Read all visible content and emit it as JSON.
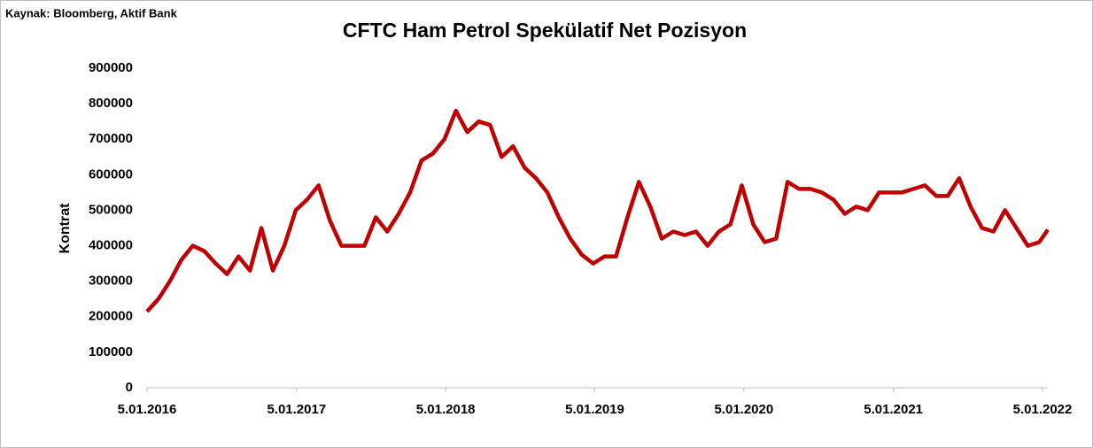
{
  "source": "Kaynak: Bloomberg, Aktif Bank",
  "chart_data": {
    "type": "line",
    "title": "CFTC Ham Petrol Spekülatif Net Pozisyon",
    "y_label": "Kontrat",
    "x": [
      "2016-01-05",
      "2016-02-02",
      "2016-03-01",
      "2016-03-29",
      "2016-04-26",
      "2016-05-24",
      "2016-06-21",
      "2016-07-19",
      "2016-08-16",
      "2016-09-13",
      "2016-10-11",
      "2016-11-08",
      "2016-12-06",
      "2017-01-03",
      "2017-01-31",
      "2017-02-28",
      "2017-03-28",
      "2017-04-25",
      "2017-05-23",
      "2017-06-20",
      "2017-07-18",
      "2017-08-15",
      "2017-09-12",
      "2017-10-10",
      "2017-11-07",
      "2017-12-05",
      "2018-01-02",
      "2018-01-30",
      "2018-02-27",
      "2018-03-27",
      "2018-04-24",
      "2018-05-22",
      "2018-06-19",
      "2018-07-17",
      "2018-08-14",
      "2018-09-11",
      "2018-10-09",
      "2018-11-06",
      "2018-12-04",
      "2019-01-01",
      "2019-01-29",
      "2019-02-26",
      "2019-03-26",
      "2019-04-23",
      "2019-05-21",
      "2019-06-18",
      "2019-07-16",
      "2019-08-13",
      "2019-09-10",
      "2019-10-08",
      "2019-11-05",
      "2019-12-03",
      "2019-12-31",
      "2020-01-28",
      "2020-02-25",
      "2020-03-24",
      "2020-04-21",
      "2020-05-19",
      "2020-06-16",
      "2020-07-14",
      "2020-08-11",
      "2020-09-08",
      "2020-10-06",
      "2020-11-03",
      "2020-12-01",
      "2020-12-29",
      "2021-01-26",
      "2021-02-23",
      "2021-03-23",
      "2021-04-20",
      "2021-05-18",
      "2021-06-15",
      "2021-07-13",
      "2021-08-10",
      "2021-09-07",
      "2021-10-05",
      "2021-11-02",
      "2021-11-30",
      "2021-12-28",
      "2022-01-18"
    ],
    "series": [
      {
        "name": "CFTC Ham Petrol Spekülatif Net Pozisyon",
        "color": "#c00000",
        "values": [
          215000,
          250000,
          300000,
          360000,
          400000,
          385000,
          350000,
          320000,
          370000,
          330000,
          450000,
          330000,
          400000,
          500000,
          530000,
          570000,
          470000,
          400000,
          400000,
          400000,
          480000,
          440000,
          490000,
          550000,
          640000,
          660000,
          700000,
          780000,
          720000,
          750000,
          740000,
          650000,
          680000,
          620000,
          590000,
          550000,
          480000,
          420000,
          375000,
          350000,
          370000,
          370000,
          480000,
          580000,
          510000,
          420000,
          440000,
          430000,
          440000,
          400000,
          440000,
          460000,
          570000,
          460000,
          410000,
          420000,
          580000,
          560000,
          560000,
          550000,
          530000,
          490000,
          510000,
          500000,
          550000,
          550000,
          550000,
          560000,
          570000,
          540000,
          540000,
          590000,
          510000,
          450000,
          440000,
          500000,
          450000,
          400000,
          410000,
          445000
        ]
      }
    ],
    "xlim": [
      "2016-01-05",
      "2022-01-18"
    ],
    "xticks": [
      {
        "value": "2016-01-05",
        "label": "5.01.2016"
      },
      {
        "value": "2017-01-05",
        "label": "5.01.2017"
      },
      {
        "value": "2018-01-05",
        "label": "5.01.2018"
      },
      {
        "value": "2019-01-05",
        "label": "5.01.2019"
      },
      {
        "value": "2020-01-05",
        "label": "5.01.2020"
      },
      {
        "value": "2021-01-05",
        "label": "5.01.2021"
      },
      {
        "value": "2022-01-05",
        "label": "5.01.2022"
      }
    ],
    "ylim": [
      0,
      900000
    ],
    "yticks": [
      0,
      100000,
      200000,
      300000,
      400000,
      500000,
      600000,
      700000,
      800000,
      900000
    ],
    "grid": false
  }
}
